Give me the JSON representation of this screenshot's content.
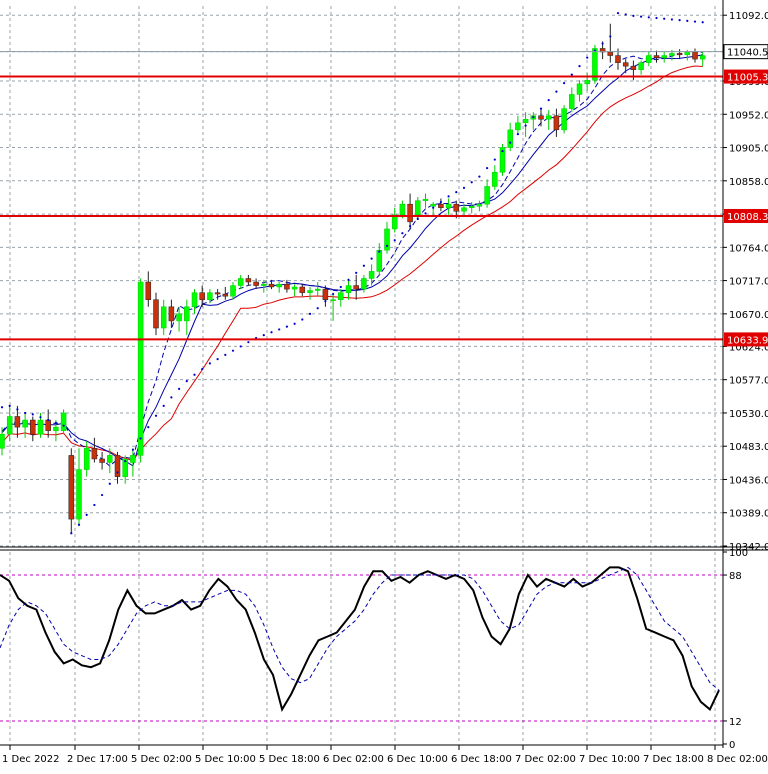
{
  "chart_data": [
    {
      "type": "candlestick",
      "panel": "price",
      "y_ticks": [
        "11092.0",
        "11040.5",
        "10999.0",
        "10952.0",
        "10905.0",
        "10858.0",
        "10811.0",
        "10764.0",
        "10717.0",
        "10670.0",
        "10624.0",
        "10577.0",
        "10530.0",
        "10483.0",
        "10436.0",
        "10389.0",
        "10342.0"
      ],
      "ylim": [
        10342.0,
        11105.0
      ],
      "current_price_label": "11040.5",
      "current_price": 11040.5,
      "horizontal_levels": [
        {
          "label": "11005.3",
          "value": 11005.3
        },
        {
          "label": "10808.3",
          "value": 10808.3
        },
        {
          "label": "10633.9",
          "value": 10633.9
        }
      ],
      "colors": {
        "up": "#00ff00",
        "down": "#c8320a",
        "level": "#e00000",
        "ma_fast": "#0000aa",
        "ma_slow": "#dd0000",
        "ma_dashed": "#0000aa",
        "sar": "#0000cc",
        "grid": "#9aa3ab"
      },
      "candles": [
        [
          10480,
          10510,
          10470,
          10500
        ],
        [
          10500,
          10540,
          10490,
          10525
        ],
        [
          10525,
          10540,
          10495,
          10510
        ],
        [
          10510,
          10530,
          10495,
          10520
        ],
        [
          10520,
          10525,
          10490,
          10500
        ],
        [
          10500,
          10530,
          10495,
          10520
        ],
        [
          10520,
          10535,
          10495,
          10505
        ],
        [
          10505,
          10520,
          10490,
          10510
        ],
        [
          10505,
          10535,
          10500,
          10530
        ],
        [
          10470,
          10480,
          10360,
          10380
        ],
        [
          10380,
          10480,
          10370,
          10450
        ],
        [
          10450,
          10490,
          10440,
          10480
        ],
        [
          10480,
          10495,
          10460,
          10465
        ],
        [
          10465,
          10475,
          10450,
          10460
        ],
        [
          10460,
          10480,
          10445,
          10470
        ],
        [
          10470,
          10475,
          10430,
          10440
        ],
        [
          10440,
          10470,
          10430,
          10465
        ],
        [
          10460,
          10480,
          10440,
          10470
        ],
        [
          10470,
          10720,
          10460,
          10715
        ],
        [
          10715,
          10730,
          10680,
          10690
        ],
        [
          10690,
          10700,
          10640,
          10650
        ],
        [
          10650,
          10690,
          10640,
          10680
        ],
        [
          10680,
          10690,
          10650,
          10660
        ],
        [
          10660,
          10680,
          10645,
          10670
        ],
        [
          10660,
          10690,
          10640,
          10680
        ],
        [
          10680,
          10705,
          10670,
          10700
        ],
        [
          10700,
          10710,
          10680,
          10690
        ],
        [
          10690,
          10705,
          10685,
          10700
        ],
        [
          10700,
          10705,
          10690,
          10698
        ],
        [
          10698,
          10708,
          10690,
          10695
        ],
        [
          10695,
          10715,
          10690,
          10710
        ],
        [
          10710,
          10725,
          10705,
          10720
        ],
        [
          10720,
          10725,
          10710,
          10715
        ],
        [
          10715,
          10720,
          10705,
          10710
        ],
        [
          10710,
          10718,
          10700,
          10712
        ],
        [
          10712,
          10718,
          10705,
          10708
        ],
        [
          10708,
          10715,
          10700,
          10712
        ],
        [
          10712,
          10718,
          10700,
          10705
        ],
        [
          10705,
          10712,
          10695,
          10708
        ],
        [
          10708,
          10712,
          10695,
          10700
        ],
        [
          10700,
          10708,
          10690,
          10703
        ],
        [
          10703,
          10715,
          10695,
          10705
        ],
        [
          10705,
          10710,
          10680,
          10690
        ],
        [
          10690,
          10700,
          10660,
          10690
        ],
        [
          10690,
          10705,
          10680,
          10700
        ],
        [
          10700,
          10720,
          10690,
          10710
        ],
        [
          10710,
          10725,
          10690,
          10705
        ],
        [
          10705,
          10725,
          10700,
          10720
        ],
        [
          10720,
          10740,
          10710,
          10730
        ],
        [
          10730,
          10770,
          10725,
          10760
        ],
        [
          10760,
          10800,
          10755,
          10790
        ],
        [
          10790,
          10820,
          10785,
          10810
        ],
        [
          10810,
          10830,
          10805,
          10825
        ],
        [
          10825,
          10840,
          10790,
          10800
        ],
        [
          10810,
          10835,
          10805,
          10830
        ],
        [
          10830,
          10840,
          10820,
          10832
        ],
        [
          10822,
          10828,
          10810,
          10825
        ],
        [
          10825,
          10833,
          10815,
          10820
        ],
        [
          10820,
          10833,
          10810,
          10825
        ],
        [
          10825,
          10830,
          10805,
          10815
        ],
        [
          10815,
          10825,
          10810,
          10820
        ],
        [
          10820,
          10828,
          10812,
          10822
        ],
        [
          10822,
          10830,
          10815,
          10825
        ],
        [
          10825,
          10860,
          10820,
          10850
        ],
        [
          10850,
          10880,
          10845,
          10870
        ],
        [
          10870,
          10910,
          10865,
          10905
        ],
        [
          10905,
          10940,
          10900,
          10930
        ],
        [
          10930,
          10950,
          10925,
          10940
        ],
        [
          10940,
          10955,
          10920,
          10945
        ],
        [
          10945,
          10955,
          10930,
          10950
        ],
        [
          10950,
          10960,
          10935,
          10945
        ],
        [
          10945,
          10958,
          10930,
          10950
        ],
        [
          10950,
          10960,
          10920,
          10930
        ],
        [
          10930,
          10965,
          10925,
          10960
        ],
        [
          10960,
          10990,
          10955,
          10980
        ],
        [
          10980,
          11000,
          10970,
          10995
        ],
        [
          10995,
          11010,
          10985,
          11000
        ],
        [
          11000,
          11050,
          10995,
          11045
        ],
        [
          11045,
          11055,
          11030,
          11040
        ],
        [
          11040,
          11080,
          11025,
          11035
        ],
        [
          11035,
          11045,
          11015,
          11025
        ],
        [
          11025,
          11030,
          11010,
          11020
        ],
        [
          11020,
          11028,
          11000,
          11015
        ],
        [
          11015,
          11028,
          11008,
          11025
        ],
        [
          11025,
          11040,
          11020,
          11035
        ],
        [
          11035,
          11042,
          11025,
          11032
        ],
        [
          11032,
          11040,
          11025,
          11035
        ],
        [
          11035,
          11043,
          11028,
          11038
        ],
        [
          11038,
          11044,
          11030,
          11036
        ],
        [
          11036,
          11043,
          11028,
          11040
        ],
        [
          11040,
          11045,
          11025,
          11030
        ],
        [
          11030,
          11040,
          11020,
          11035
        ]
      ],
      "sar": [
        10538,
        10540,
        10535,
        10530,
        10528,
        10524,
        10520,
        10516,
        10512,
        10360,
        10372,
        10386,
        10400,
        10414,
        10430,
        10446,
        10462,
        10478,
        10494,
        10510,
        10526,
        10540,
        10552,
        10564,
        10575,
        10584,
        10592,
        10600,
        10606,
        10612,
        10618,
        10624,
        10630,
        10636,
        10640,
        10644,
        10648,
        10652,
        10656,
        10662,
        10670,
        10678,
        10688,
        10698,
        10708,
        10718,
        10728,
        10738,
        10748,
        10758,
        10766,
        10774,
        10784,
        10794,
        10804,
        10812,
        10820,
        10828,
        10836,
        10842,
        10848,
        10856,
        10864,
        10876,
        10888,
        10900,
        10912,
        10924,
        10936,
        10948,
        10960,
        10972,
        10984,
        10996,
        11008,
        11020,
        11032,
        11042,
        11052,
        11062,
        11095,
        11093,
        11091,
        11090,
        11089,
        11088,
        11087,
        11086,
        11085,
        11084,
        11083,
        11082
      ]
    },
    {
      "type": "line",
      "panel": "stochastic",
      "ylim": [
        0,
        100
      ],
      "y_ticks": [
        "100",
        "88",
        "12",
        "0"
      ],
      "levels": [
        88,
        12
      ],
      "x_tick_labels": [
        "1 Dec 2022",
        "2 Dec 17:00",
        "5 Dec 02:00",
        "5 Dec 10:00",
        "5 Dec 18:00",
        "6 Dec 02:00",
        "6 Dec 10:00",
        "6 Dec 18:00",
        "7 Dec 02:00",
        "7 Dec 10:00",
        "7 Dec 18:00",
        "8 Dec 02:00"
      ],
      "series": [
        {
          "style": "solid",
          "color": "#000000",
          "values": [
            88,
            85,
            76,
            72,
            70,
            58,
            48,
            42,
            44,
            41,
            40,
            42,
            54,
            70,
            80,
            72,
            68,
            68,
            70,
            72,
            75,
            70,
            72,
            80,
            86,
            82,
            75,
            70,
            58,
            44,
            36,
            18,
            26,
            36,
            46,
            54,
            56,
            58,
            64,
            70,
            82,
            90,
            90,
            85,
            87,
            84,
            88,
            90,
            88,
            86,
            88,
            86,
            80,
            66,
            56,
            52,
            60,
            78,
            88,
            82,
            86,
            84,
            82,
            86,
            82,
            84,
            88,
            92,
            92,
            90,
            76,
            60,
            58,
            56,
            54,
            46,
            30,
            22,
            18,
            28
          ]
        },
        {
          "style": "dashed",
          "color": "#0000aa",
          "values": [
            50,
            62,
            70,
            74,
            72,
            68,
            60,
            52,
            48,
            46,
            44,
            44,
            46,
            52,
            60,
            68,
            72,
            74,
            72,
            72,
            74,
            74,
            74,
            76,
            78,
            80,
            80,
            78,
            72,
            62,
            50,
            40,
            34,
            32,
            34,
            42,
            50,
            56,
            60,
            64,
            70,
            78,
            84,
            88,
            88,
            88,
            88,
            88,
            88,
            88,
            88,
            88,
            86,
            80,
            72,
            64,
            60,
            62,
            70,
            78,
            82,
            84,
            84,
            84,
            84,
            84,
            86,
            88,
            90,
            92,
            88,
            80,
            72,
            64,
            60,
            56,
            48,
            40,
            32,
            28
          ]
        }
      ]
    }
  ]
}
